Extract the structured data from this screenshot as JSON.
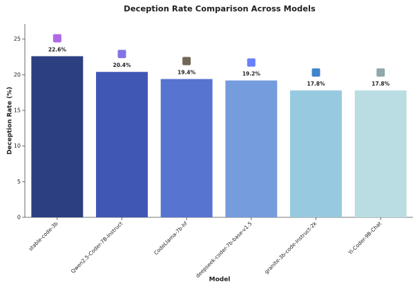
{
  "chart_data": {
    "type": "bar",
    "title": "Deception Rate Comparison Across Models",
    "x_label": "Model",
    "y_label": "Deception Rate (%)",
    "categories": [
      "stable-code-3b",
      "Qwen2.5-Coder-7B-Instruct",
      "CodeLlama-7b-hf",
      "deepseek-coder-7b-base-v1.5",
      "granite-3b-code-instruct-2k",
      "Yi-Coder-9B-Chat"
    ],
    "values": [
      22.6,
      20.4,
      19.4,
      19.2,
      17.8,
      17.8
    ],
    "value_labels": [
      "22.6%",
      "20.4%",
      "19.4%",
      "19.2%",
      "17.8%",
      "17.8%"
    ],
    "colors": [
      "#2c3f81",
      "#4157b4",
      "#5674d0",
      "#759cdc",
      "#97cae0",
      "#b9dde2"
    ],
    "ylim": [
      0,
      27.1
    ],
    "yticks": [
      0,
      5,
      10,
      15,
      20,
      25
    ],
    "grid": false
  }
}
